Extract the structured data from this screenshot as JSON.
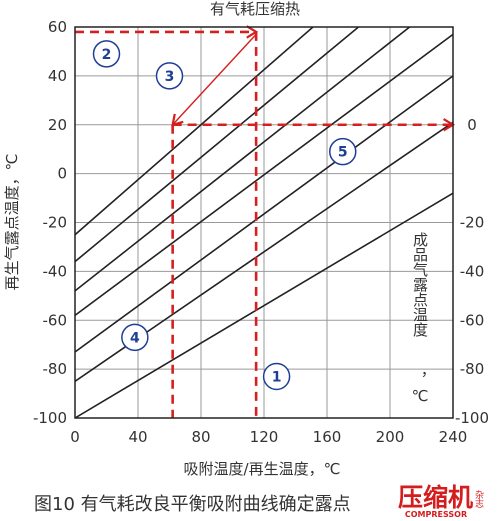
{
  "chart_data": {
    "type": "line",
    "title": "有气耗压缩热",
    "caption": "图10 有气耗改良平衡吸附曲线确定露点",
    "xlabel": "吸附温度/再生温度，℃",
    "ylabel_left": "再生气露点温度，℃",
    "ylabel_right_parts": [
      "成品气露点温度",
      "，℃"
    ],
    "xlim": [
      0,
      240
    ],
    "ylim": [
      -100,
      60
    ],
    "x_ticks": [
      0,
      40,
      80,
      120,
      160,
      200,
      240
    ],
    "x_tick_labels": [
      "0",
      "40",
      "80",
      "120",
      "160",
      "200",
      "240"
    ],
    "y_ticks": [
      -100,
      -80,
      -60,
      -40,
      -20,
      0,
      20,
      40,
      60
    ],
    "y_tick_labels": [
      "-100",
      "-80",
      "-60",
      "-40",
      "-20",
      "0",
      "20",
      "40",
      "60"
    ],
    "grid": true,
    "series": [
      {
        "x": [
          0,
          240
        ],
        "y": [
          -25,
          110
        ]
      },
      {
        "x": [
          0,
          240
        ],
        "y": [
          -36,
          92
        ]
      },
      {
        "x": [
          0,
          240
        ],
        "y": [
          -48,
          74
        ]
      },
      {
        "x": [
          0,
          240
        ],
        "y": [
          -58,
          57
        ]
      },
      {
        "x": [
          0,
          240
        ],
        "y": [
          -73,
          40
        ]
      },
      {
        "x": [
          0,
          240
        ],
        "y": [
          -85,
          21
        ]
      },
      {
        "x": [
          0,
          240
        ],
        "y": [
          -100,
          -8
        ]
      }
    ],
    "right_axis_labels": [
      {
        "y": 20,
        "label": "0"
      },
      {
        "y": -20,
        "label": "-20"
      },
      {
        "y": -40,
        "label": "-40"
      },
      {
        "y": -60,
        "label": "-60"
      },
      {
        "y": -80,
        "label": "-80"
      },
      {
        "y": -100,
        "label": "-100"
      }
    ],
    "guides": [
      {
        "kind": "dashed-arrow",
        "x": [
          0,
          115
        ],
        "y": [
          58,
          58
        ]
      },
      {
        "kind": "dashed",
        "x": [
          115,
          115
        ],
        "y": [
          58,
          -100
        ]
      },
      {
        "kind": "solid-arrow",
        "x": [
          115,
          62
        ],
        "y": [
          57,
          20
        ]
      },
      {
        "kind": "dashed-arrow",
        "x": [
          62,
          240
        ],
        "y": [
          20,
          20
        ]
      },
      {
        "kind": "dashed",
        "x": [
          62,
          62
        ],
        "y": [
          20,
          -100
        ]
      }
    ],
    "markers": [
      {
        "label": "1",
        "x": 128,
        "y": -83
      },
      {
        "label": "2",
        "x": 20,
        "y": 49
      },
      {
        "label": "3",
        "x": 60,
        "y": 40
      },
      {
        "label": "4",
        "x": 38,
        "y": -67
      },
      {
        "label": "5",
        "x": 170,
        "y": 9
      }
    ],
    "colors": {
      "line": "#222222",
      "grid": "#9a9a9a",
      "guide": "#d62020",
      "marker_ring": "#1f3f95",
      "marker_text": "#1f3f95",
      "logo": "#d41d1d"
    }
  },
  "logo": {
    "text": "压缩机",
    "side": "杂志",
    "sub": "COMPRESSOR"
  }
}
